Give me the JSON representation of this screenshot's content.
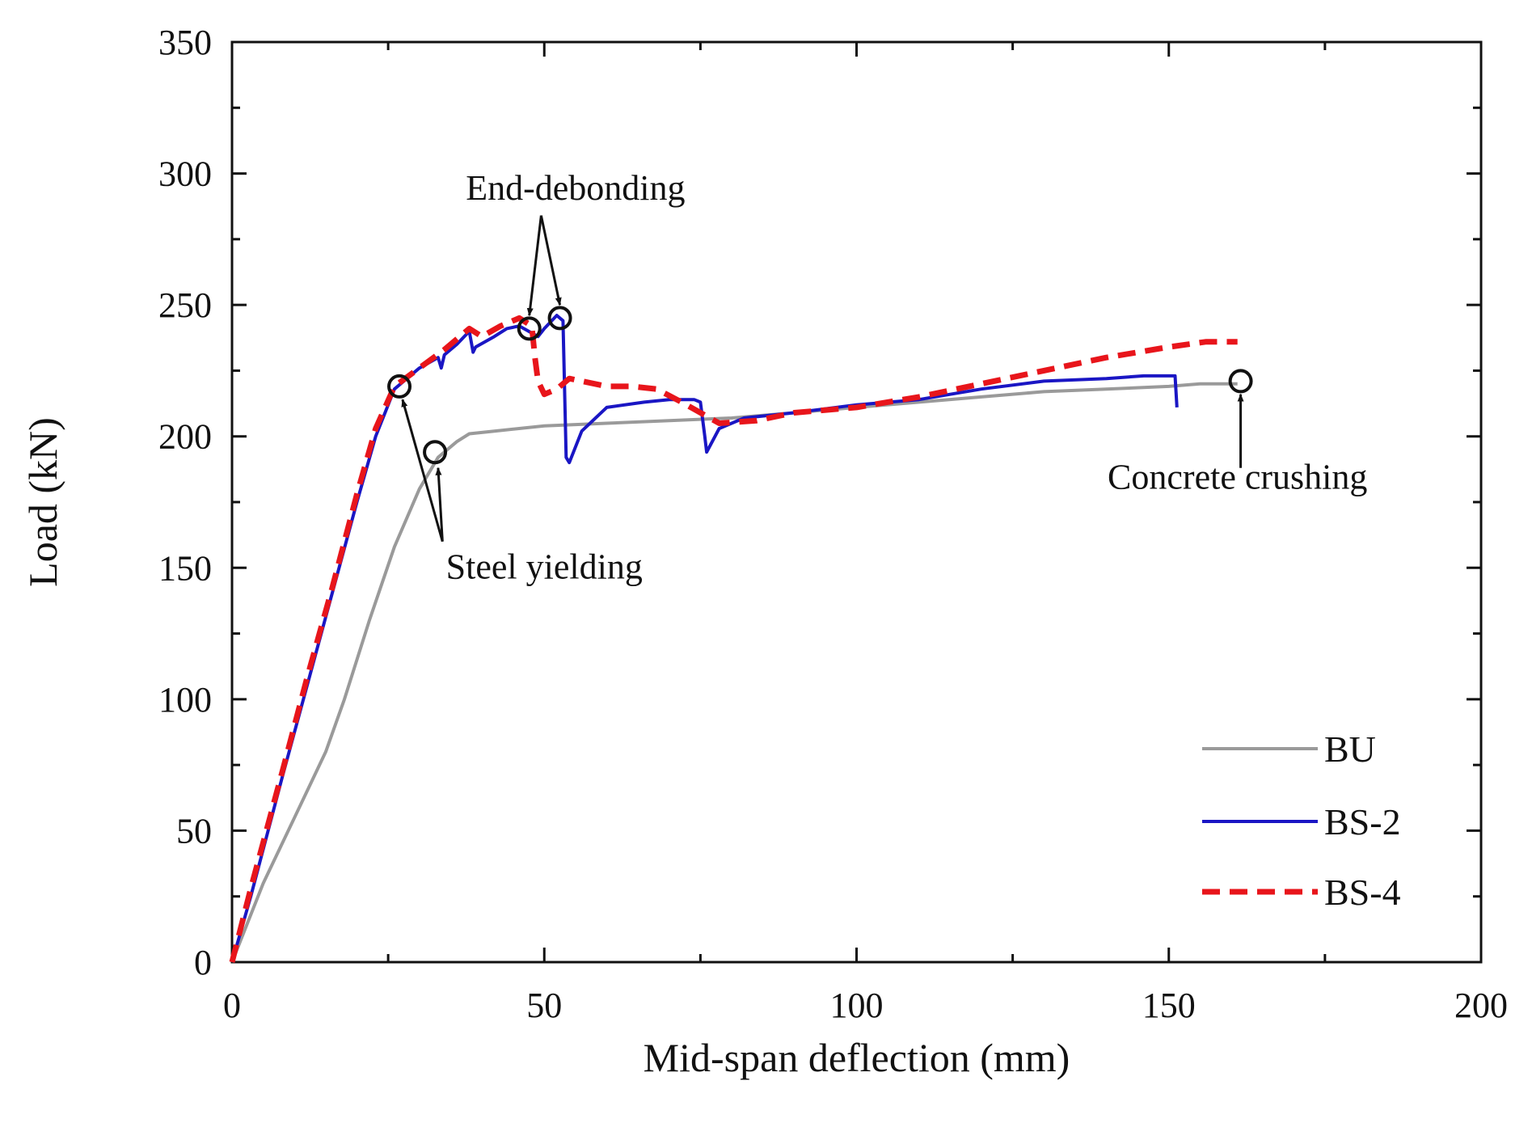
{
  "chart_data": {
    "type": "line",
    "xlabel": "Mid-span deflection (mm)",
    "ylabel": "Load (kN)",
    "xlim": [
      0,
      200
    ],
    "ylim": [
      0,
      350
    ],
    "xticks": [
      "0",
      "50",
      "100",
      "150",
      "200"
    ],
    "yticks": [
      "0",
      "50",
      "100",
      "150",
      "200",
      "250",
      "300",
      "350"
    ],
    "grid": false,
    "legend": "bottom-right",
    "series": [
      {
        "name": "BU",
        "color": "#9a9a9a",
        "style": "solid",
        "points": [
          [
            0,
            0
          ],
          [
            5,
            30
          ],
          [
            10,
            55
          ],
          [
            15,
            80
          ],
          [
            18,
            100
          ],
          [
            22,
            130
          ],
          [
            26,
            158
          ],
          [
            30,
            180
          ],
          [
            33,
            192
          ],
          [
            36,
            198
          ],
          [
            38,
            201
          ],
          [
            42,
            202
          ],
          [
            50,
            204
          ],
          [
            60,
            205
          ],
          [
            70,
            206
          ],
          [
            80,
            207
          ],
          [
            90,
            209
          ],
          [
            100,
            211
          ],
          [
            110,
            213
          ],
          [
            120,
            215
          ],
          [
            130,
            217
          ],
          [
            140,
            218
          ],
          [
            150,
            219
          ],
          [
            155,
            220
          ],
          [
            161,
            220
          ]
        ]
      },
      {
        "name": "BS-2",
        "color": "#1a16c4",
        "style": "solid",
        "points": [
          [
            0,
            0
          ],
          [
            3,
            25
          ],
          [
            8,
            70
          ],
          [
            12,
            105
          ],
          [
            16,
            140
          ],
          [
            20,
            175
          ],
          [
            23,
            200
          ],
          [
            26,
            218
          ],
          [
            30,
            226
          ],
          [
            33,
            230
          ],
          [
            33.5,
            226
          ],
          [
            34,
            231
          ],
          [
            36,
            235
          ],
          [
            38,
            240
          ],
          [
            38.6,
            232
          ],
          [
            39,
            234
          ],
          [
            42,
            238
          ],
          [
            44,
            241
          ],
          [
            46,
            242
          ],
          [
            49,
            238
          ],
          [
            50,
            241
          ],
          [
            52,
            246
          ],
          [
            53,
            244
          ],
          [
            53.5,
            192
          ],
          [
            54,
            190
          ],
          [
            56,
            202
          ],
          [
            60,
            211
          ],
          [
            66,
            213
          ],
          [
            70,
            214
          ],
          [
            74,
            214
          ],
          [
            75,
            213
          ],
          [
            75.7,
            200
          ],
          [
            76,
            194
          ],
          [
            78,
            203
          ],
          [
            82,
            207
          ],
          [
            90,
            209
          ],
          [
            100,
            212
          ],
          [
            110,
            214
          ],
          [
            120,
            218
          ],
          [
            130,
            221
          ],
          [
            140,
            222
          ],
          [
            146,
            223
          ],
          [
            151,
            223
          ],
          [
            151.3,
            211
          ]
        ]
      },
      {
        "name": "BS-4",
        "color": "#e8151b",
        "style": "dashed",
        "points": [
          [
            0,
            0
          ],
          [
            3,
            28
          ],
          [
            8,
            72
          ],
          [
            12,
            108
          ],
          [
            16,
            142
          ],
          [
            20,
            178
          ],
          [
            23,
            203
          ],
          [
            26,
            219
          ],
          [
            30,
            226
          ],
          [
            34,
            233
          ],
          [
            38,
            241
          ],
          [
            40,
            238
          ],
          [
            43,
            242
          ],
          [
            46,
            245
          ],
          [
            48,
            242
          ],
          [
            48.5,
            230
          ],
          [
            49,
            221
          ],
          [
            50,
            216
          ],
          [
            52,
            218
          ],
          [
            54,
            222
          ],
          [
            60,
            219
          ],
          [
            64,
            219
          ],
          [
            68,
            218
          ],
          [
            72,
            213
          ],
          [
            78,
            205
          ],
          [
            84,
            206
          ],
          [
            90,
            209
          ],
          [
            100,
            211
          ],
          [
            110,
            215
          ],
          [
            120,
            220
          ],
          [
            130,
            225
          ],
          [
            140,
            230
          ],
          [
            150,
            234
          ],
          [
            156,
            236
          ],
          [
            161,
            236
          ]
        ]
      }
    ],
    "annotations": [
      {
        "text": "End-debonding",
        "x": 55,
        "y": 290
      },
      {
        "text": "Steel yielding",
        "x": 50,
        "y": 146
      },
      {
        "text": "Concrete crushing",
        "x": 161,
        "y": 180
      }
    ],
    "markers": [
      [
        26.8,
        219
      ],
      [
        32.5,
        194
      ],
      [
        47.6,
        241
      ],
      [
        52.5,
        245
      ],
      [
        161.5,
        221
      ]
    ]
  }
}
